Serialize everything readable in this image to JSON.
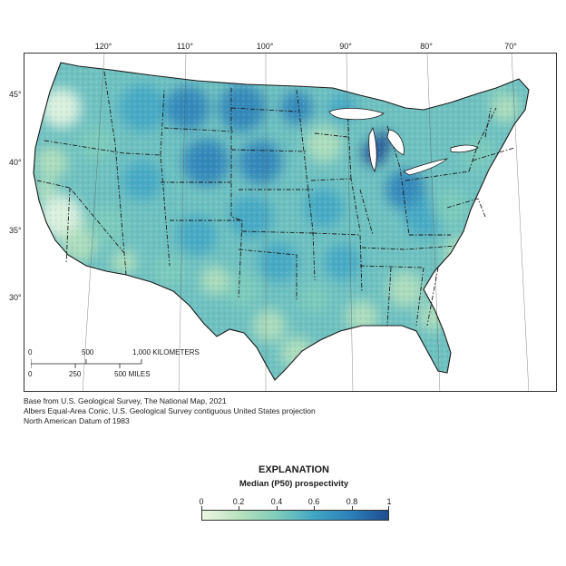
{
  "map": {
    "longitude_labels": [
      "120°",
      "110°",
      "100°",
      "90°",
      "80°",
      "70°"
    ],
    "latitude_labels": [
      "45°",
      "40°",
      "35°",
      "30°"
    ],
    "scale": {
      "km_labels": [
        "0",
        "500",
        "1,000 KILOMETERS"
      ],
      "mile_labels": [
        "0",
        "250",
        "500 MILES"
      ]
    }
  },
  "credits": {
    "line1": "Base from U.S. Geological Survey, The National Map, 2021",
    "line2": "Albers Equal-Area Conic, U.S. Geological Survey contiguous United States projection",
    "line3": "North American Datum of 1983"
  },
  "legend": {
    "title": "EXPLANATION",
    "subtitle": "Median (P50) prospectivity",
    "ticks": [
      "0",
      "0.2",
      "0.4",
      "0.6",
      "0.8",
      "1"
    ],
    "colors": [
      "#edf8e4",
      "#b7e2bc",
      "#7fcdbb",
      "#41a6c4",
      "#2c7fb8",
      "#1d4e91"
    ]
  }
}
